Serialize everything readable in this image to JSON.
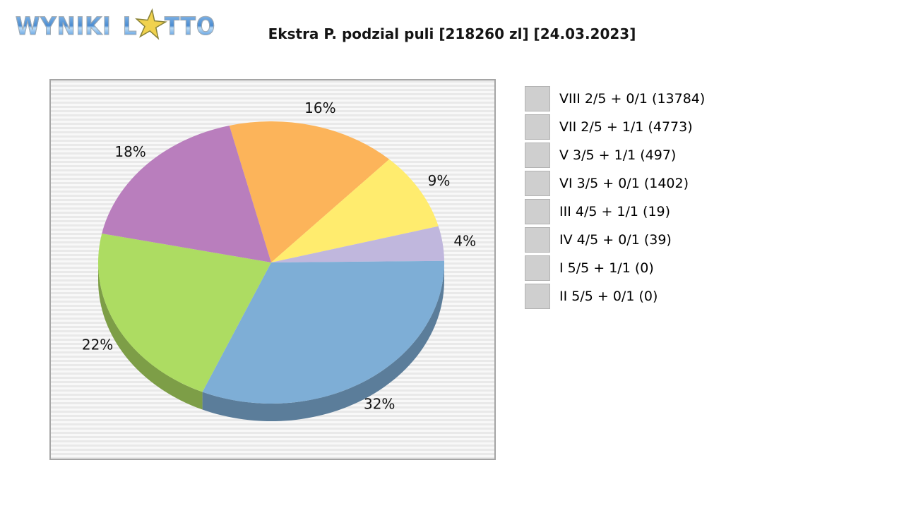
{
  "logo": {
    "word1": "WYNIKI",
    "word2_l": "L",
    "star": "★",
    "word2_tto": "TTO",
    "full_text": "WYNIKI LOTTO"
  },
  "title": "Ekstra P. podzial puli [218260 zl] [24.03.2023]",
  "chart_data": {
    "type": "pie",
    "style": "3d",
    "title": "Ekstra P. podzial puli [218260 zl] [24.03.2023]",
    "pool": "218260 zl",
    "date": "24.03.2023",
    "legend_position": "right",
    "start_angle_clockwise_from_top_deg": -14,
    "slices": [
      {
        "label": "VIII 2/5 + 0/1 (13784)",
        "tier": "VIII 2/5 + 0/1",
        "winners": 13784,
        "percent": 32,
        "color": "#7EAED6"
      },
      {
        "label": "VII 2/5 + 1/1 (4773)",
        "tier": "VII 2/5 + 1/1",
        "winners": 4773,
        "percent": 22,
        "color": "#ADDC62"
      },
      {
        "label": "V 3/5 + 1/1 (497)",
        "tier": "V 3/5 + 1/1",
        "winners": 497,
        "percent": 18,
        "color": "#B97EBD"
      },
      {
        "label": "VI 3/5 + 0/1 (1402)",
        "tier": "VI 3/5 + 0/1",
        "winners": 1402,
        "percent": 16,
        "color": "#FCB45A"
      },
      {
        "label": "III 4/5 + 1/1 (19)",
        "tier": "III 4/5 + 1/1",
        "winners": 19,
        "percent": 9,
        "color": "#FFEC6E"
      },
      {
        "label": "IV 4/5 + 0/1 (39)",
        "tier": "IV 4/5 + 0/1",
        "winners": 39,
        "percent": 4,
        "color": "#C0B7DD"
      },
      {
        "label": "I 5/5 + 1/1 (0)",
        "tier": "I 5/5 + 1/1",
        "winners": 0,
        "percent": 0,
        "color": "#F9C8E5"
      },
      {
        "label": "II 5/5 + 0/1 (0)",
        "tier": "II 5/5 + 0/1",
        "winners": 0,
        "percent": 0,
        "color": "#8ED8BE"
      }
    ],
    "pie_draw_order": [
      3,
      4,
      5,
      0,
      1,
      2
    ],
    "shown_percent_labels": [
      "16%",
      "9%",
      "4%",
      "32%",
      "22%",
      "18%"
    ]
  }
}
